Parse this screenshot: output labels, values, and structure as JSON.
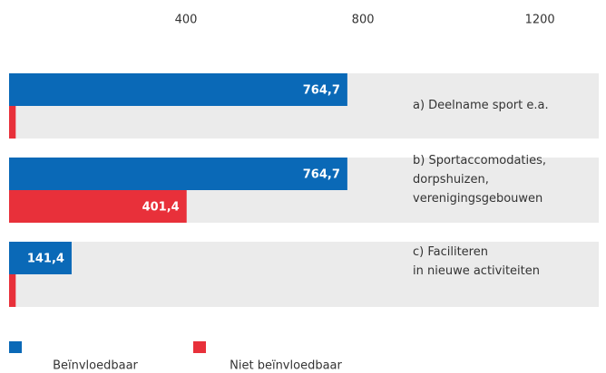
{
  "chart_data": {
    "type": "bar",
    "orientation": "horizontal",
    "categories": [
      "a) Deelname sport e.a.",
      "b) Sportaccomodaties,\ndorpshuizen,\nverenigingsgebouwen",
      "c) Faciliteren\nin nieuwe activiteiten"
    ],
    "series": [
      {
        "name": "Beïnvloedbaar",
        "color": "#0a69b7",
        "values": [
          764.7,
          764.7,
          141.4
        ],
        "value_labels": [
          "764,7",
          "764,7",
          "141,4"
        ]
      },
      {
        "name": "Niet beïnvloedbaar",
        "color": "#e8303a",
        "values": [
          15,
          401.4,
          15
        ],
        "value_labels": [
          null,
          "401,4",
          null
        ]
      }
    ],
    "xlim": [
      0,
      1333
    ],
    "xticks": [
      400,
      800,
      1200
    ],
    "grid": false,
    "legend": "bottom-left"
  }
}
